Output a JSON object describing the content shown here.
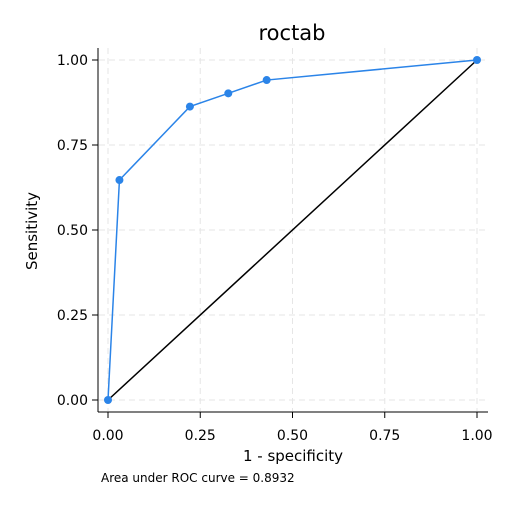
{
  "chart_data": {
    "type": "line",
    "title": "roctab",
    "xlabel": "1 - specificity",
    "ylabel": "Sensitivity",
    "xlim": [
      0,
      1
    ],
    "ylim": [
      0,
      1
    ],
    "xticks": [
      "0.00",
      "0.25",
      "0.50",
      "0.75",
      "1.00"
    ],
    "yticks": [
      "0.00",
      "0.25",
      "0.50",
      "0.75",
      "1.00"
    ],
    "grid": true,
    "series": [
      {
        "color": "#2b84e8",
        "markers": true,
        "x": [
          0.0,
          0.031,
          0.222,
          0.326,
          0.43,
          1.0
        ],
        "y": [
          0.0,
          0.647,
          0.863,
          0.902,
          0.941,
          1.0
        ]
      }
    ],
    "reference_line": {
      "color": "#000000",
      "x": [
        0,
        1
      ],
      "y": [
        0,
        1
      ]
    },
    "note": "Area under ROC curve = 0.8932"
  }
}
